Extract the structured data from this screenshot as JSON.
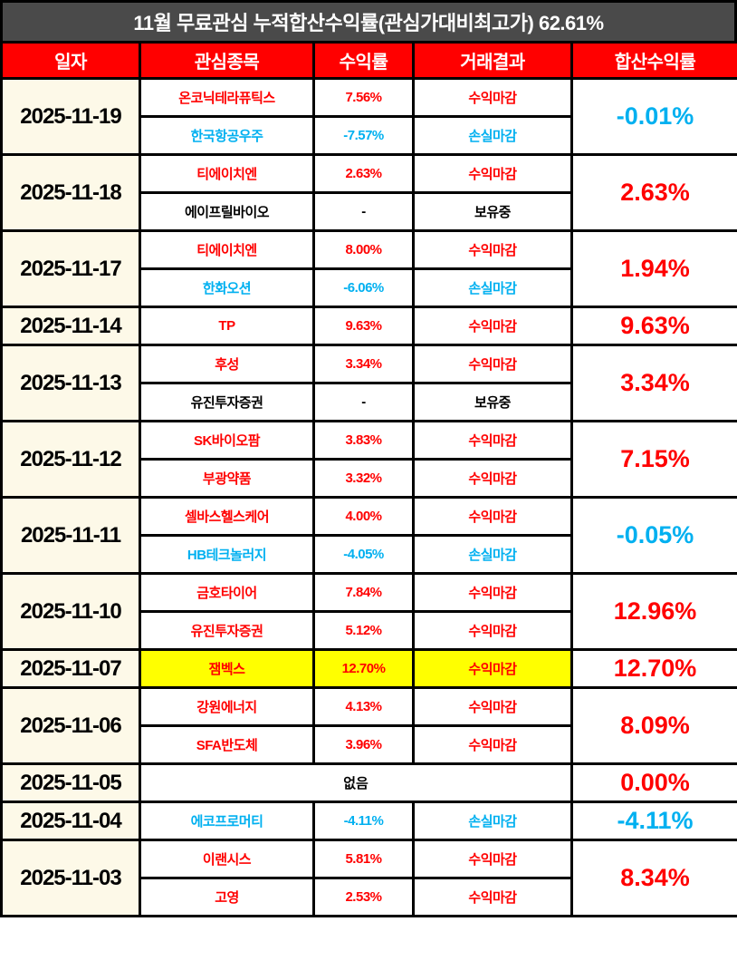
{
  "title": "11월 무료관심 누적합산수익률(관심가대비최고가) 62.61%",
  "columns": [
    "일자",
    "관심종목",
    "수익률",
    "거래결과",
    "합산수익률"
  ],
  "colors": {
    "title_bg": "#4a4a4a",
    "header_bg": "#ff0000",
    "header_text": "#ffffff",
    "date_bg": "#fdf9e8",
    "gain_text": "#ff0000",
    "loss_text": "#00b0f0",
    "neutral_text": "#000000",
    "highlight_bg": "#ffff00",
    "border": "#000000"
  },
  "rows": [
    {
      "date": "2025-11-19",
      "total": "-0.01%",
      "total_color": "blue",
      "stocks": [
        {
          "name": "온코닉테라퓨틱스",
          "return": "7.56%",
          "result": "수익마감",
          "color": "red"
        },
        {
          "name": "한국항공우주",
          "return": "-7.57%",
          "result": "손실마감",
          "color": "blue"
        }
      ]
    },
    {
      "date": "2025-11-18",
      "total": "2.63%",
      "total_color": "red",
      "stocks": [
        {
          "name": "티에이치엔",
          "return": "2.63%",
          "result": "수익마감",
          "color": "red"
        },
        {
          "name": "에이프릴바이오",
          "return": "-",
          "result": "보유중",
          "color": "black"
        }
      ]
    },
    {
      "date": "2025-11-17",
      "total": "1.94%",
      "total_color": "red",
      "stocks": [
        {
          "name": "티에이치엔",
          "return": "8.00%",
          "result": "수익마감",
          "color": "red"
        },
        {
          "name": "한화오션",
          "return": "-6.06%",
          "result": "손실마감",
          "color": "blue"
        }
      ]
    },
    {
      "date": "2025-11-14",
      "total": "9.63%",
      "total_color": "red",
      "stocks": [
        {
          "name": "TP",
          "return": "9.63%",
          "result": "수익마감",
          "color": "red"
        }
      ]
    },
    {
      "date": "2025-11-13",
      "total": "3.34%",
      "total_color": "red",
      "stocks": [
        {
          "name": "후성",
          "return": "3.34%",
          "result": "수익마감",
          "color": "red"
        },
        {
          "name": "유진투자증권",
          "return": "-",
          "result": "보유중",
          "color": "black"
        }
      ]
    },
    {
      "date": "2025-11-12",
      "total": "7.15%",
      "total_color": "red",
      "stocks": [
        {
          "name": "SK바이오팜",
          "return": "3.83%",
          "result": "수익마감",
          "color": "red"
        },
        {
          "name": "부광약품",
          "return": "3.32%",
          "result": "수익마감",
          "color": "red"
        }
      ]
    },
    {
      "date": "2025-11-11",
      "total": "-0.05%",
      "total_color": "blue",
      "stocks": [
        {
          "name": "셀바스헬스케어",
          "return": "4.00%",
          "result": "수익마감",
          "color": "red"
        },
        {
          "name": "HB테크놀러지",
          "return": "-4.05%",
          "result": "손실마감",
          "color": "blue"
        }
      ]
    },
    {
      "date": "2025-11-10",
      "total": "12.96%",
      "total_color": "red",
      "stocks": [
        {
          "name": "금호타이어",
          "return": "7.84%",
          "result": "수익마감",
          "color": "red"
        },
        {
          "name": "유진투자증권",
          "return": "5.12%",
          "result": "수익마감",
          "color": "red"
        }
      ]
    },
    {
      "date": "2025-11-07",
      "total": "12.70%",
      "total_color": "red",
      "highlight": true,
      "stocks": [
        {
          "name": "잼벡스",
          "return": "12.70%",
          "result": "수익마감",
          "color": "red"
        }
      ]
    },
    {
      "date": "2025-11-06",
      "total": "8.09%",
      "total_color": "red",
      "stocks": [
        {
          "name": "강원에너지",
          "return": "4.13%",
          "result": "수익마감",
          "color": "red"
        },
        {
          "name": "SFA반도체",
          "return": "3.96%",
          "result": "수익마감",
          "color": "red"
        }
      ]
    },
    {
      "date": "2025-11-05",
      "total": "0.00%",
      "total_color": "red",
      "empty": true,
      "empty_label": "없음",
      "stocks": []
    },
    {
      "date": "2025-11-04",
      "total": "-4.11%",
      "total_color": "blue",
      "stocks": [
        {
          "name": "에코프로머티",
          "return": "-4.11%",
          "result": "손실마감",
          "color": "blue"
        }
      ]
    },
    {
      "date": "2025-11-03",
      "total": "8.34%",
      "total_color": "red",
      "stocks": [
        {
          "name": "이랜시스",
          "return": "5.81%",
          "result": "수익마감",
          "color": "red"
        },
        {
          "name": "고영",
          "return": "2.53%",
          "result": "수익마감",
          "color": "red"
        }
      ]
    }
  ]
}
